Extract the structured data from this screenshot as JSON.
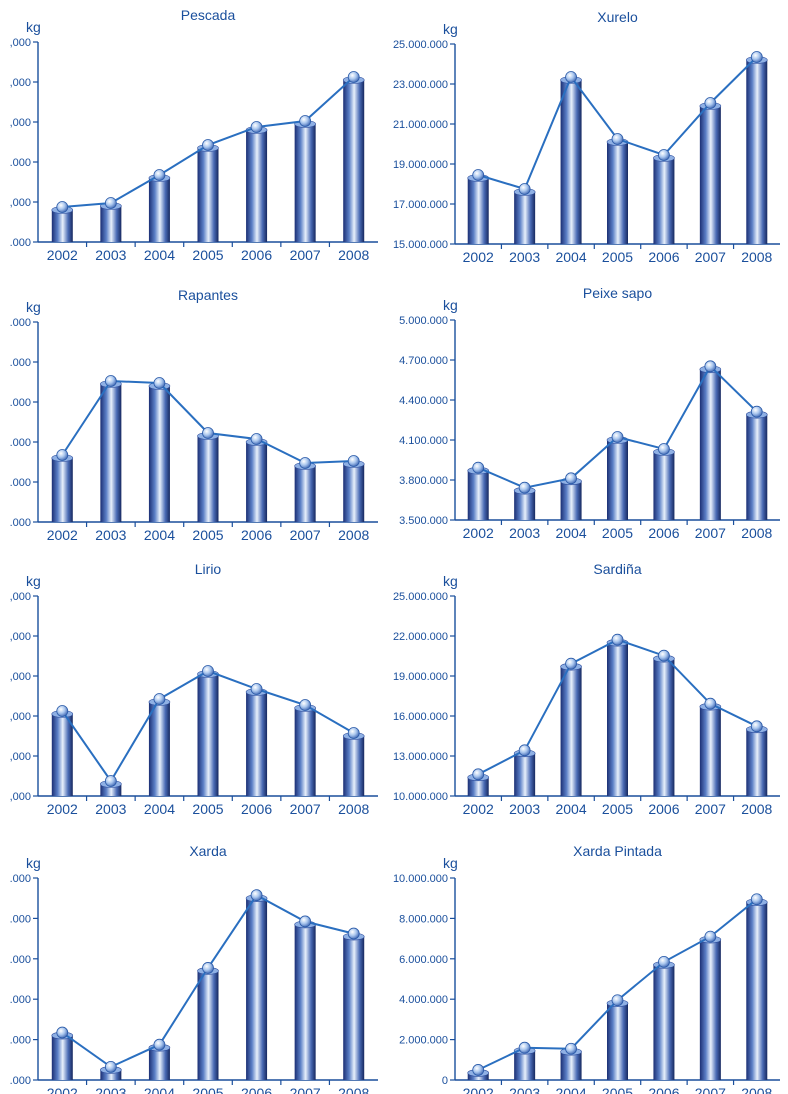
{
  "chart_data": [
    {
      "type": "bar",
      "title": "Pescada",
      "ylabel": "kg",
      "categories": [
        "2002",
        "2003",
        "2004",
        "2005",
        "2006",
        "2007",
        "2008"
      ],
      "yticks": [
        ".000",
        ",000",
        ".000",
        ",000",
        ",000",
        ",000"
      ],
      "ylim": [
        0,
        5
      ],
      "values": [
        0.8,
        0.9,
        1.6,
        2.35,
        2.8,
        2.95,
        4.05
      ]
    },
    {
      "type": "bar",
      "title": "Xurelo",
      "ylabel": "kg",
      "categories": [
        "2002",
        "2003",
        "2004",
        "2005",
        "2006",
        "2007",
        "2008"
      ],
      "yticks": [
        "15.000.000",
        "17.000.000",
        "19.000.000",
        "21.000.000",
        "23.000.000",
        "25.000.000"
      ],
      "ylim": [
        15000000,
        25000000
      ],
      "values": [
        18300000,
        17600000,
        23200000,
        20100000,
        19300000,
        21900000,
        24200000
      ]
    },
    {
      "type": "bar",
      "title": "Rapantes",
      "ylabel": "kg",
      "categories": [
        "2002",
        "2003",
        "2004",
        "2005",
        "2006",
        "2007",
        "2008"
      ],
      "yticks": [
        ".000",
        ".000",
        ".000",
        ".000",
        ".000",
        ".000"
      ],
      "ylim": [
        0,
        5
      ],
      "values": [
        1.6,
        3.45,
        3.4,
        2.15,
        2.0,
        1.4,
        1.45
      ]
    },
    {
      "type": "bar",
      "title": "Peixe sapo",
      "ylabel": "kg",
      "categories": [
        "2002",
        "2003",
        "2004",
        "2005",
        "2006",
        "2007",
        "2008"
      ],
      "yticks": [
        "3.500.000",
        "3.800.000",
        "4.100.000",
        "4.400.000",
        "4.700.000",
        "5.000.000"
      ],
      "ylim": [
        3500000,
        5000000
      ],
      "values": [
        3870000,
        3720000,
        3790000,
        4100000,
        4010000,
        4630000,
        4290000
      ]
    },
    {
      "type": "bar",
      "title": "Lirio",
      "ylabel": "kg",
      "categories": [
        "2002",
        "2003",
        "2004",
        "2005",
        "2006",
        "2007",
        "2008"
      ],
      "yticks": [
        ",000",
        ",000",
        ",000",
        ",000",
        ",000",
        ",000"
      ],
      "ylim": [
        0,
        5
      ],
      "values": [
        2.05,
        0.3,
        2.35,
        3.05,
        2.6,
        2.2,
        1.5
      ]
    },
    {
      "type": "bar",
      "title": "Sardiña",
      "ylabel": "kg",
      "categories": [
        "2002",
        "2003",
        "2004",
        "2005",
        "2006",
        "2007",
        "2008"
      ],
      "yticks": [
        "10.000.000",
        "13.000.000",
        "16.000.000",
        "19.000.000",
        "22.000.000",
        "25.000.000"
      ],
      "ylim": [
        10000000,
        25000000
      ],
      "values": [
        11400000,
        13200000,
        19700000,
        21500000,
        20300000,
        16700000,
        15000000
      ]
    },
    {
      "type": "bar",
      "title": "Xarda",
      "ylabel": "kg",
      "categories": [
        "2002",
        "2003",
        "2004",
        "2005",
        "2006",
        "2007",
        "2008"
      ],
      "yticks": [
        ".000",
        ".000",
        ".000",
        ".000",
        ".000",
        ".000"
      ],
      "ylim": [
        0,
        5
      ],
      "values": [
        1.1,
        0.25,
        0.8,
        2.7,
        4.5,
        3.85,
        3.55
      ]
    },
    {
      "type": "bar",
      "title": "Xarda Pintada",
      "ylabel": "kg",
      "categories": [
        "2002",
        "2003",
        "2004",
        "2005",
        "2006",
        "2007",
        "2008"
      ],
      "yticks": [
        "0",
        "2.000.000",
        "4.000.000",
        "6.000.000",
        "8.000.000",
        "10.000.000"
      ],
      "ylim": [
        0,
        10000000
      ],
      "values": [
        350000,
        1450000,
        1400000,
        3800000,
        5700000,
        6950000,
        8800000
      ]
    }
  ]
}
